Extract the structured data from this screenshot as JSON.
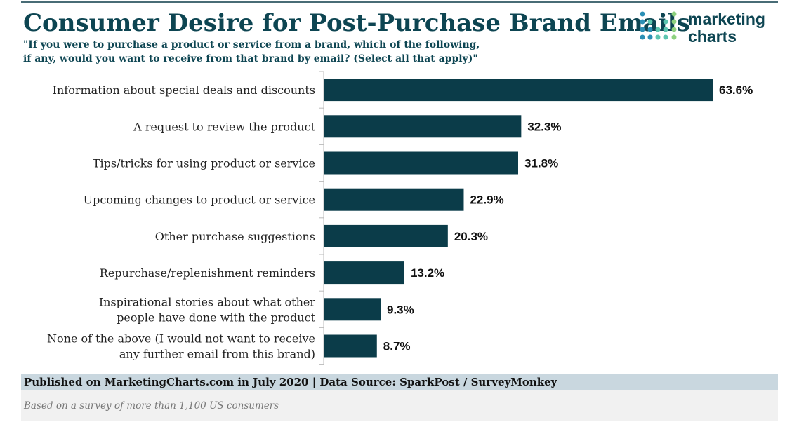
{
  "chart_data": {
    "type": "bar",
    "orientation": "horizontal",
    "title": "Consumer Desire for Post-Purchase Brand Emails",
    "subtitle": [
      "\"If you were to purchase a product or service from a brand, which of the following,",
      "if any, would you want to receive from that brand by email? (Select all that apply)\""
    ],
    "categories": [
      "Information about special deals and discounts",
      "A request to review the product",
      "Tips/tricks for using product or service",
      "Upcoming changes to product or service",
      "Other purchase suggestions",
      "Repurchase/replenishment reminders",
      "Inspirational stories about what other\npeople have done with the product",
      "None of the above (I would not want to receive\nany further email from this brand)"
    ],
    "values": [
      63.6,
      32.3,
      31.8,
      22.9,
      20.3,
      13.2,
      9.3,
      8.7
    ],
    "value_labels": [
      "63.6%",
      "32.3%",
      "31.8%",
      "22.9%",
      "20.3%",
      "13.2%",
      "9.3%",
      "8.7%"
    ],
    "color": "#0b3c49",
    "source": "Published on MarketingCharts.com in July 2020 | Data Source: SparkPost / SurveyMonkey",
    "note": "Based on a survey of more than 1,100 US consumers",
    "logo": [
      "marketing",
      "charts"
    ]
  }
}
